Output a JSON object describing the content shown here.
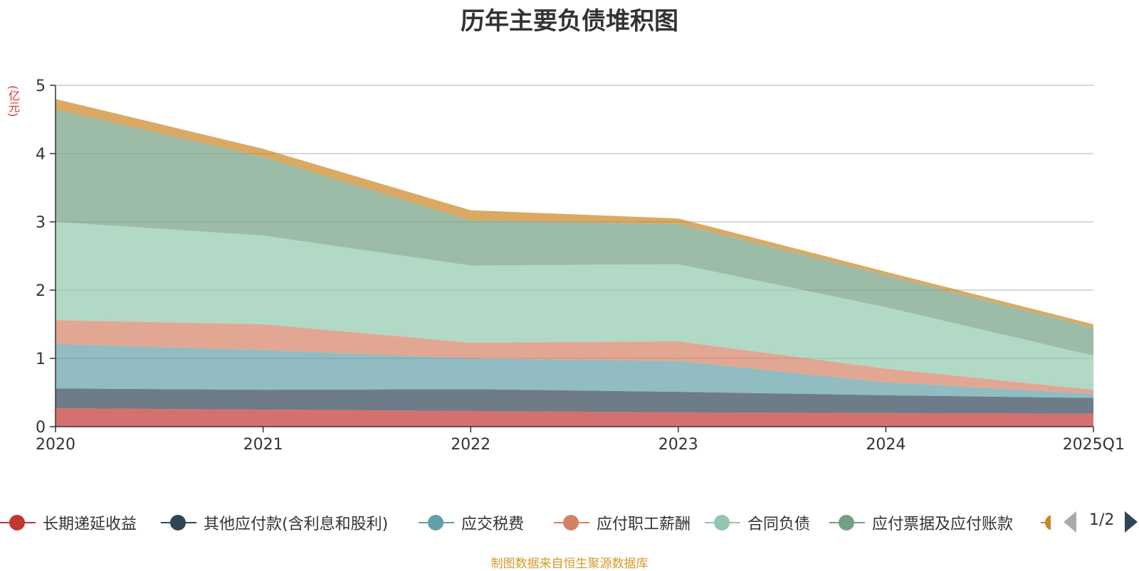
{
  "chart_data": {
    "type": "area",
    "title": "历年主要负债堆积图",
    "ylabel": "(亿元)",
    "xlabel": "",
    "categories": [
      "2020",
      "2021",
      "2022",
      "2023",
      "2024",
      "2025Q1"
    ],
    "ylim": [
      0,
      5
    ],
    "yticks": [
      0,
      1,
      2,
      3,
      4,
      5
    ],
    "stacked": true,
    "grid": true,
    "legend_position": "bottom",
    "series": [
      {
        "name": "长期递延收益",
        "color": "#c23531",
        "values": [
          0.27,
          0.25,
          0.23,
          0.21,
          0.2,
          0.19
        ]
      },
      {
        "name": "其他应付款(含利息和股利)",
        "color": "#2f4554",
        "values": [
          0.29,
          0.29,
          0.32,
          0.3,
          0.26,
          0.23
        ]
      },
      {
        "name": "应交税费",
        "color": "#61a0a8",
        "values": [
          0.65,
          0.58,
          0.45,
          0.45,
          0.19,
          0.06
        ]
      },
      {
        "name": "应付职工薪酬",
        "color": "#d48265",
        "values": [
          0.35,
          0.38,
          0.23,
          0.29,
          0.2,
          0.06
        ]
      },
      {
        "name": "合同负债",
        "color": "#91c7ae",
        "values": [
          1.44,
          1.3,
          1.13,
          1.13,
          0.9,
          0.5
        ]
      },
      {
        "name": "应付票据及应付账款",
        "color": "#749f83",
        "values": [
          1.65,
          1.15,
          0.66,
          0.59,
          0.47,
          0.41
        ]
      },
      {
        "name": "",
        "color": "#ca8622",
        "values": [
          0.15,
          0.12,
          0.15,
          0.08,
          0.05,
          0.05
        ]
      }
    ]
  },
  "legend": {
    "page_indicator": "1/2"
  },
  "footer": {
    "source": "制图数据来自恒生聚源数据库"
  }
}
